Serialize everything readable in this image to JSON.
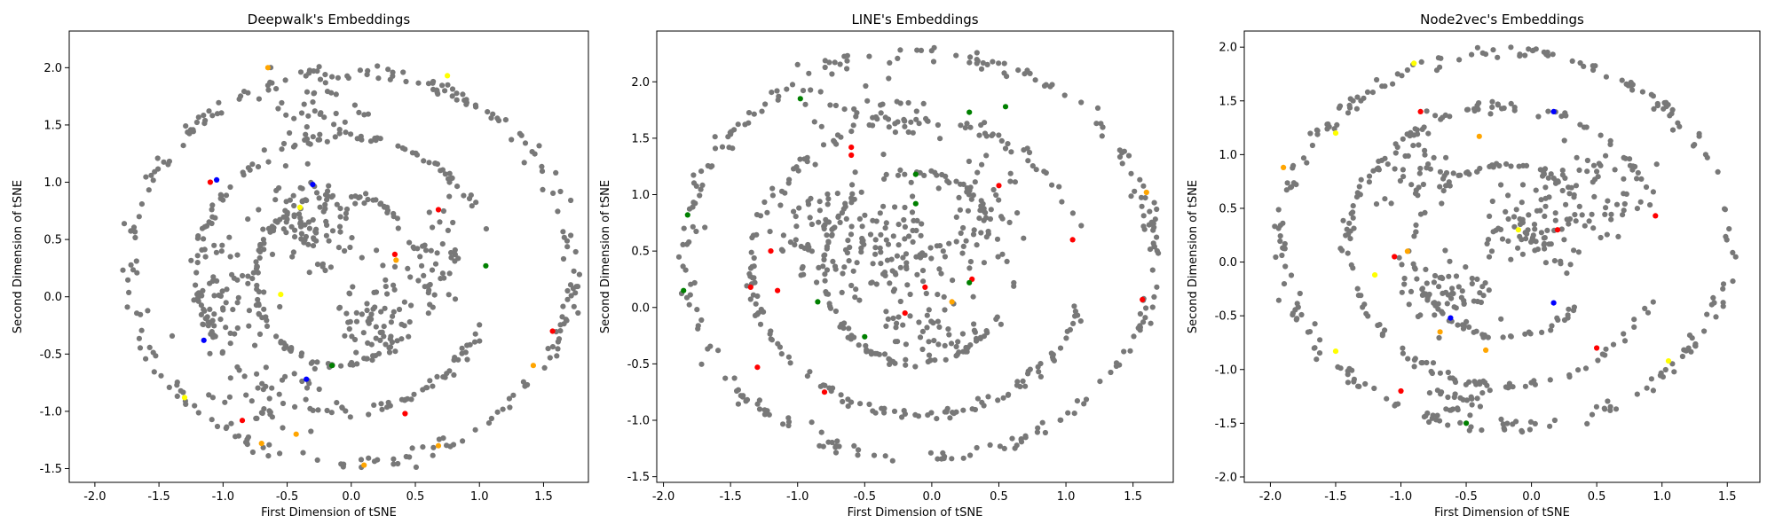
{
  "chart_data": [
    {
      "type": "scatter",
      "title": "Deepwalk's Embeddings",
      "xlabel": "First Dimension of tSNE",
      "ylabel": "Second Dimension of tSNE",
      "xlim": [
        -2.2,
        1.85
      ],
      "ylim": [
        -1.62,
        2.32
      ],
      "xticks": [
        -2.0,
        -1.5,
        -1.0,
        -0.5,
        0.0,
        0.5,
        1.0,
        1.5
      ],
      "yticks": [
        -1.5,
        -1.0,
        -0.5,
        0.0,
        0.5,
        1.0,
        1.5,
        2.0
      ],
      "rings": [
        {
          "cx": 0.0,
          "cy": 0.25,
          "rx": 1.72,
          "ry": 1.72,
          "start": 0,
          "end": 360,
          "n": 230
        },
        {
          "cx": -0.05,
          "cy": 0.2,
          "rx": 1.15,
          "ry": 1.2,
          "start": 20,
          "end": 340,
          "n": 150
        },
        {
          "cx": -0.1,
          "cy": 0.15,
          "rx": 0.65,
          "ry": 0.75,
          "start": 40,
          "end": 330,
          "n": 90
        }
      ],
      "clusters": [
        {
          "x": -0.3,
          "y": 0.6,
          "sx": 0.35,
          "sy": 0.4,
          "n": 90
        },
        {
          "x": 0.2,
          "y": -0.2,
          "sx": 0.25,
          "sy": 0.25,
          "n": 60
        },
        {
          "x": -0.9,
          "y": 0.0,
          "sx": 0.3,
          "sy": 0.5,
          "n": 60
        },
        {
          "x": 0.6,
          "y": 0.3,
          "sx": 0.3,
          "sy": 0.5,
          "n": 50
        },
        {
          "x": -0.2,
          "y": 1.6,
          "sx": 0.4,
          "sy": 0.3,
          "n": 40
        },
        {
          "x": -0.6,
          "y": -0.9,
          "sx": 0.4,
          "sy": 0.3,
          "n": 40
        }
      ],
      "colored_points": [
        {
          "x": -1.05,
          "y": 1.02,
          "color": "#0000ff"
        },
        {
          "x": -1.1,
          "y": 1.0,
          "color": "#ff0000"
        },
        {
          "x": -0.3,
          "y": 0.98,
          "color": "#0000ff"
        },
        {
          "x": -0.4,
          "y": 0.78,
          "color": "#ffff00"
        },
        {
          "x": 0.68,
          "y": 0.76,
          "color": "#ff0000"
        },
        {
          "x": 0.34,
          "y": 0.37,
          "color": "#ff0000"
        },
        {
          "x": 0.35,
          "y": 0.32,
          "color": "#ffa500"
        },
        {
          "x": 1.05,
          "y": 0.27,
          "color": "#008000"
        },
        {
          "x": -0.55,
          "y": 0.02,
          "color": "#ffff00"
        },
        {
          "x": -1.15,
          "y": -0.38,
          "color": "#0000ff"
        },
        {
          "x": -0.35,
          "y": -0.72,
          "color": "#0000ff"
        },
        {
          "x": -0.15,
          "y": -0.6,
          "color": "#008000"
        },
        {
          "x": 1.57,
          "y": -0.3,
          "color": "#ff0000"
        },
        {
          "x": 1.42,
          "y": -0.6,
          "color": "#ffa500"
        },
        {
          "x": 0.42,
          "y": -1.02,
          "color": "#ff0000"
        },
        {
          "x": -0.7,
          "y": -1.28,
          "color": "#ffa500"
        },
        {
          "x": -0.43,
          "y": -1.2,
          "color": "#ffa500"
        },
        {
          "x": 0.68,
          "y": -1.3,
          "color": "#ffa500"
        },
        {
          "x": 0.1,
          "y": -1.47,
          "color": "#ffa500"
        },
        {
          "x": -0.65,
          "y": 2.0,
          "color": "#ffa500"
        },
        {
          "x": 0.75,
          "y": 1.93,
          "color": "#ffff00"
        },
        {
          "x": -1.3,
          "y": -0.88,
          "color": "#ffff00"
        },
        {
          "x": -0.85,
          "y": -1.08,
          "color": "#ff0000"
        }
      ]
    },
    {
      "type": "scatter",
      "title": "LINE's Embeddings",
      "xlabel": "First Dimension of tSNE",
      "ylabel": "Second Dimension of tSNE",
      "xlim": [
        -2.05,
        1.8
      ],
      "ylim": [
        -1.55,
        2.45
      ],
      "xticks": [
        -2.0,
        -1.5,
        -1.0,
        -0.5,
        0.0,
        0.5,
        1.0,
        1.5
      ],
      "yticks": [
        -1.5,
        -1.0,
        -0.5,
        0.0,
        0.5,
        1.0,
        1.5,
        2.0
      ],
      "rings": [
        {
          "cx": -0.1,
          "cy": 0.45,
          "rx": 1.75,
          "ry": 1.8,
          "start": 0,
          "end": 360,
          "n": 240
        },
        {
          "cx": -0.1,
          "cy": 0.35,
          "rx": 1.25,
          "ry": 1.3,
          "start": 15,
          "end": 345,
          "n": 170
        },
        {
          "cx": -0.1,
          "cy": 0.35,
          "rx": 0.7,
          "ry": 0.85,
          "start": 30,
          "end": 330,
          "n": 100
        }
      ],
      "clusters": [
        {
          "x": -0.3,
          "y": 0.5,
          "sx": 0.4,
          "sy": 0.4,
          "n": 100
        },
        {
          "x": 0.4,
          "y": 0.8,
          "sx": 0.3,
          "sy": 0.5,
          "n": 60
        },
        {
          "x": -0.9,
          "y": 0.7,
          "sx": 0.35,
          "sy": 0.5,
          "n": 60
        },
        {
          "x": 0.0,
          "y": -0.2,
          "sx": 0.4,
          "sy": 0.25,
          "n": 50
        },
        {
          "x": -0.5,
          "y": 1.7,
          "sx": 0.5,
          "sy": 0.3,
          "n": 40
        }
      ],
      "colored_points": [
        {
          "x": -0.6,
          "y": 1.42,
          "color": "#ff0000"
        },
        {
          "x": -0.6,
          "y": 1.35,
          "color": "#ff0000"
        },
        {
          "x": -0.98,
          "y": 1.85,
          "color": "#008000"
        },
        {
          "x": 0.28,
          "y": 1.73,
          "color": "#008000"
        },
        {
          "x": 0.55,
          "y": 1.78,
          "color": "#008000"
        },
        {
          "x": -0.12,
          "y": 1.18,
          "color": "#008000"
        },
        {
          "x": -0.12,
          "y": 0.92,
          "color": "#008000"
        },
        {
          "x": 0.5,
          "y": 1.08,
          "color": "#ff0000"
        },
        {
          "x": 1.6,
          "y": 1.02,
          "color": "#ffa500"
        },
        {
          "x": -1.82,
          "y": 0.82,
          "color": "#008000"
        },
        {
          "x": 1.05,
          "y": 0.6,
          "color": "#ff0000"
        },
        {
          "x": -1.2,
          "y": 0.5,
          "color": "#ff0000"
        },
        {
          "x": -1.35,
          "y": 0.18,
          "color": "#ff0000"
        },
        {
          "x": -1.15,
          "y": 0.15,
          "color": "#ff0000"
        },
        {
          "x": -1.85,
          "y": 0.15,
          "color": "#008000"
        },
        {
          "x": 0.3,
          "y": 0.25,
          "color": "#ff0000"
        },
        {
          "x": 0.28,
          "y": 0.22,
          "color": "#008000"
        },
        {
          "x": -0.05,
          "y": 0.18,
          "color": "#ff0000"
        },
        {
          "x": -0.85,
          "y": 0.05,
          "color": "#008000"
        },
        {
          "x": -0.2,
          "y": -0.05,
          "color": "#ff0000"
        },
        {
          "x": 1.57,
          "y": 0.07,
          "color": "#ff0000"
        },
        {
          "x": -0.5,
          "y": -0.26,
          "color": "#008000"
        },
        {
          "x": -1.3,
          "y": -0.53,
          "color": "#ff0000"
        },
        {
          "x": -0.8,
          "y": -0.75,
          "color": "#ff0000"
        },
        {
          "x": 0.15,
          "y": 0.05,
          "color": "#ffa500"
        }
      ]
    },
    {
      "type": "scatter",
      "title": "Node2vec's Embeddings",
      "xlabel": "First Dimension of tSNE",
      "ylabel": "Second Dimension of tSNE",
      "xlim": [
        -2.2,
        1.75
      ],
      "ylim": [
        -2.05,
        2.15
      ],
      "xticks": [
        -2.0,
        -1.5,
        -1.0,
        -0.5,
        0.0,
        0.5,
        1.0,
        1.5
      ],
      "yticks": [
        -2.0,
        -1.5,
        -1.0,
        -0.5,
        0.0,
        0.5,
        1.0,
        1.5,
        2.0
      ],
      "rings": [
        {
          "cx": -0.2,
          "cy": 0.2,
          "rx": 1.72,
          "ry": 1.75,
          "start": 0,
          "end": 360,
          "n": 230
        },
        {
          "cx": -0.2,
          "cy": 0.15,
          "rx": 1.2,
          "ry": 1.3,
          "start": 20,
          "end": 340,
          "n": 150
        },
        {
          "cx": -0.2,
          "cy": 0.1,
          "rx": 0.7,
          "ry": 0.8,
          "start": 40,
          "end": 320,
          "n": 90
        }
      ],
      "clusters": [
        {
          "x": 0.0,
          "y": 0.3,
          "sx": 0.35,
          "sy": 0.35,
          "n": 80
        },
        {
          "x": -0.6,
          "y": -0.3,
          "sx": 0.35,
          "sy": 0.3,
          "n": 60
        },
        {
          "x": 0.5,
          "y": 0.7,
          "sx": 0.35,
          "sy": 0.4,
          "n": 50
        },
        {
          "x": -0.8,
          "y": 0.9,
          "sx": 0.35,
          "sy": 0.35,
          "n": 40
        },
        {
          "x": -0.5,
          "y": -1.3,
          "sx": 0.3,
          "sy": 0.15,
          "n": 25
        }
      ],
      "colored_points": [
        {
          "x": -0.9,
          "y": 1.85,
          "color": "#ffff00"
        },
        {
          "x": -0.85,
          "y": 1.4,
          "color": "#ff0000"
        },
        {
          "x": 0.17,
          "y": 1.4,
          "color": "#0000ff"
        },
        {
          "x": -1.5,
          "y": 1.2,
          "color": "#ffff00"
        },
        {
          "x": -0.4,
          "y": 1.17,
          "color": "#ffa500"
        },
        {
          "x": -1.9,
          "y": 0.88,
          "color": "#ffa500"
        },
        {
          "x": 0.95,
          "y": 0.43,
          "color": "#ff0000"
        },
        {
          "x": 0.2,
          "y": 0.3,
          "color": "#ff0000"
        },
        {
          "x": -0.1,
          "y": 0.3,
          "color": "#ffff00"
        },
        {
          "x": -1.2,
          "y": -0.12,
          "color": "#ffff00"
        },
        {
          "x": -0.62,
          "y": -0.52,
          "color": "#0000ff"
        },
        {
          "x": 0.17,
          "y": -0.38,
          "color": "#0000ff"
        },
        {
          "x": -0.7,
          "y": -0.65,
          "color": "#ffa500"
        },
        {
          "x": 0.5,
          "y": -0.8,
          "color": "#ff0000"
        },
        {
          "x": -1.5,
          "y": -0.83,
          "color": "#ffff00"
        },
        {
          "x": -0.35,
          "y": -0.82,
          "color": "#ffa500"
        },
        {
          "x": -1.0,
          "y": -1.2,
          "color": "#ff0000"
        },
        {
          "x": -0.5,
          "y": -1.5,
          "color": "#008000"
        },
        {
          "x": 1.05,
          "y": -0.92,
          "color": "#ffff00"
        },
        {
          "x": -1.05,
          "y": 0.05,
          "color": "#ff0000"
        },
        {
          "x": -0.95,
          "y": 0.1,
          "color": "#ffa500"
        }
      ]
    }
  ]
}
